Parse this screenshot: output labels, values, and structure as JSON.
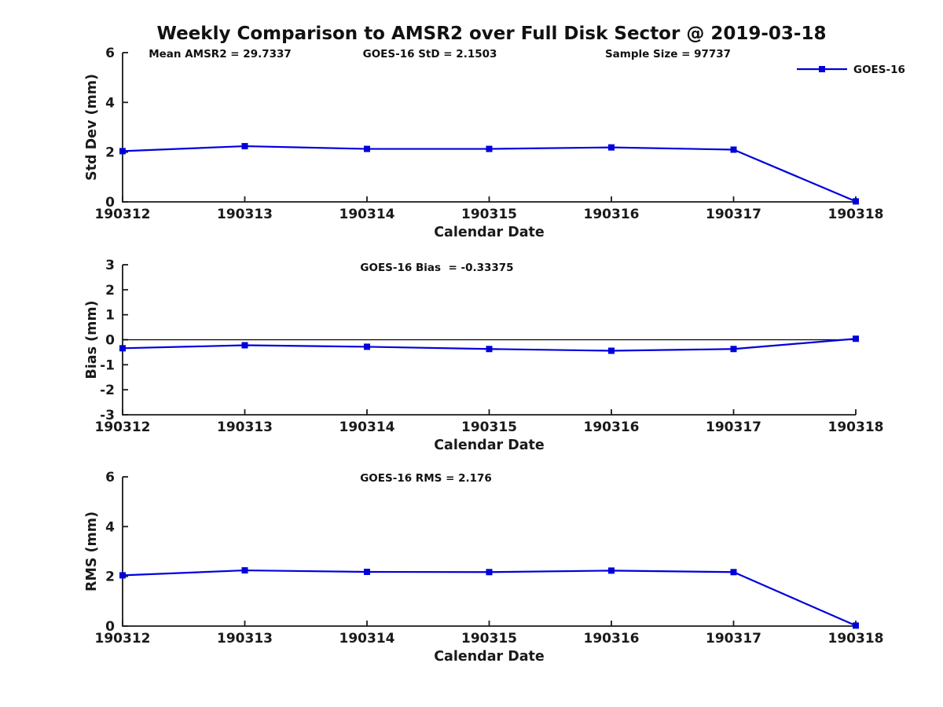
{
  "title": "Weekly Comparison to AMSR2 over Full Disk Sector @ 2019-03-18",
  "colors": {
    "line": "#0000dd",
    "axis": "#1a1a1a",
    "zero_line": "#000000"
  },
  "legend": {
    "label": "GOES-16",
    "position": "top-right",
    "marker": "filled-square"
  },
  "x_axis": {
    "label": "Calendar Date",
    "categories": [
      "190312",
      "190313",
      "190314",
      "190315",
      "190316",
      "190317",
      "190318"
    ]
  },
  "chart_data": [
    {
      "type": "line",
      "annotations": [
        "Mean AMSR2 = 29.7337",
        "GOES-16 StD = 2.1503",
        "Sample Size = 97737"
      ],
      "ylabel": "Std Dev (mm)",
      "xlabel": "Calendar Date",
      "ylim": [
        0,
        6
      ],
      "yticks": [
        0,
        2,
        4,
        6
      ],
      "grid": false,
      "categories": [
        "190312",
        "190313",
        "190314",
        "190315",
        "190316",
        "190317",
        "190318"
      ],
      "series": [
        {
          "name": "GOES-16",
          "values": [
            2.04,
            2.24,
            2.13,
            2.13,
            2.19,
            2.1,
            0.02
          ]
        }
      ],
      "show_legend": true
    },
    {
      "type": "line",
      "annotations": [
        "GOES-16 Bias  = -0.33375"
      ],
      "ylabel": "Bias (mm)",
      "xlabel": "Calendar Date",
      "ylim": [
        -3,
        3
      ],
      "yticks": [
        -3,
        -2,
        -1,
        0,
        1,
        2,
        3
      ],
      "grid": false,
      "zero_line": true,
      "categories": [
        "190312",
        "190313",
        "190314",
        "190315",
        "190316",
        "190317",
        "190318"
      ],
      "series": [
        {
          "name": "GOES-16",
          "values": [
            -0.34,
            -0.22,
            -0.28,
            -0.37,
            -0.44,
            -0.37,
            0.04
          ]
        }
      ],
      "show_legend": false
    },
    {
      "type": "line",
      "annotations": [
        "GOES-16 RMS = 2.176"
      ],
      "ylabel": "RMS (mm)",
      "xlabel": "Calendar Date",
      "ylim": [
        0,
        6
      ],
      "yticks": [
        0,
        2,
        4,
        6
      ],
      "grid": false,
      "categories": [
        "190312",
        "190313",
        "190314",
        "190315",
        "190316",
        "190317",
        "190318"
      ],
      "series": [
        {
          "name": "GOES-16",
          "values": [
            2.04,
            2.24,
            2.18,
            2.17,
            2.23,
            2.17,
            0.02
          ]
        }
      ],
      "show_legend": false
    }
  ]
}
